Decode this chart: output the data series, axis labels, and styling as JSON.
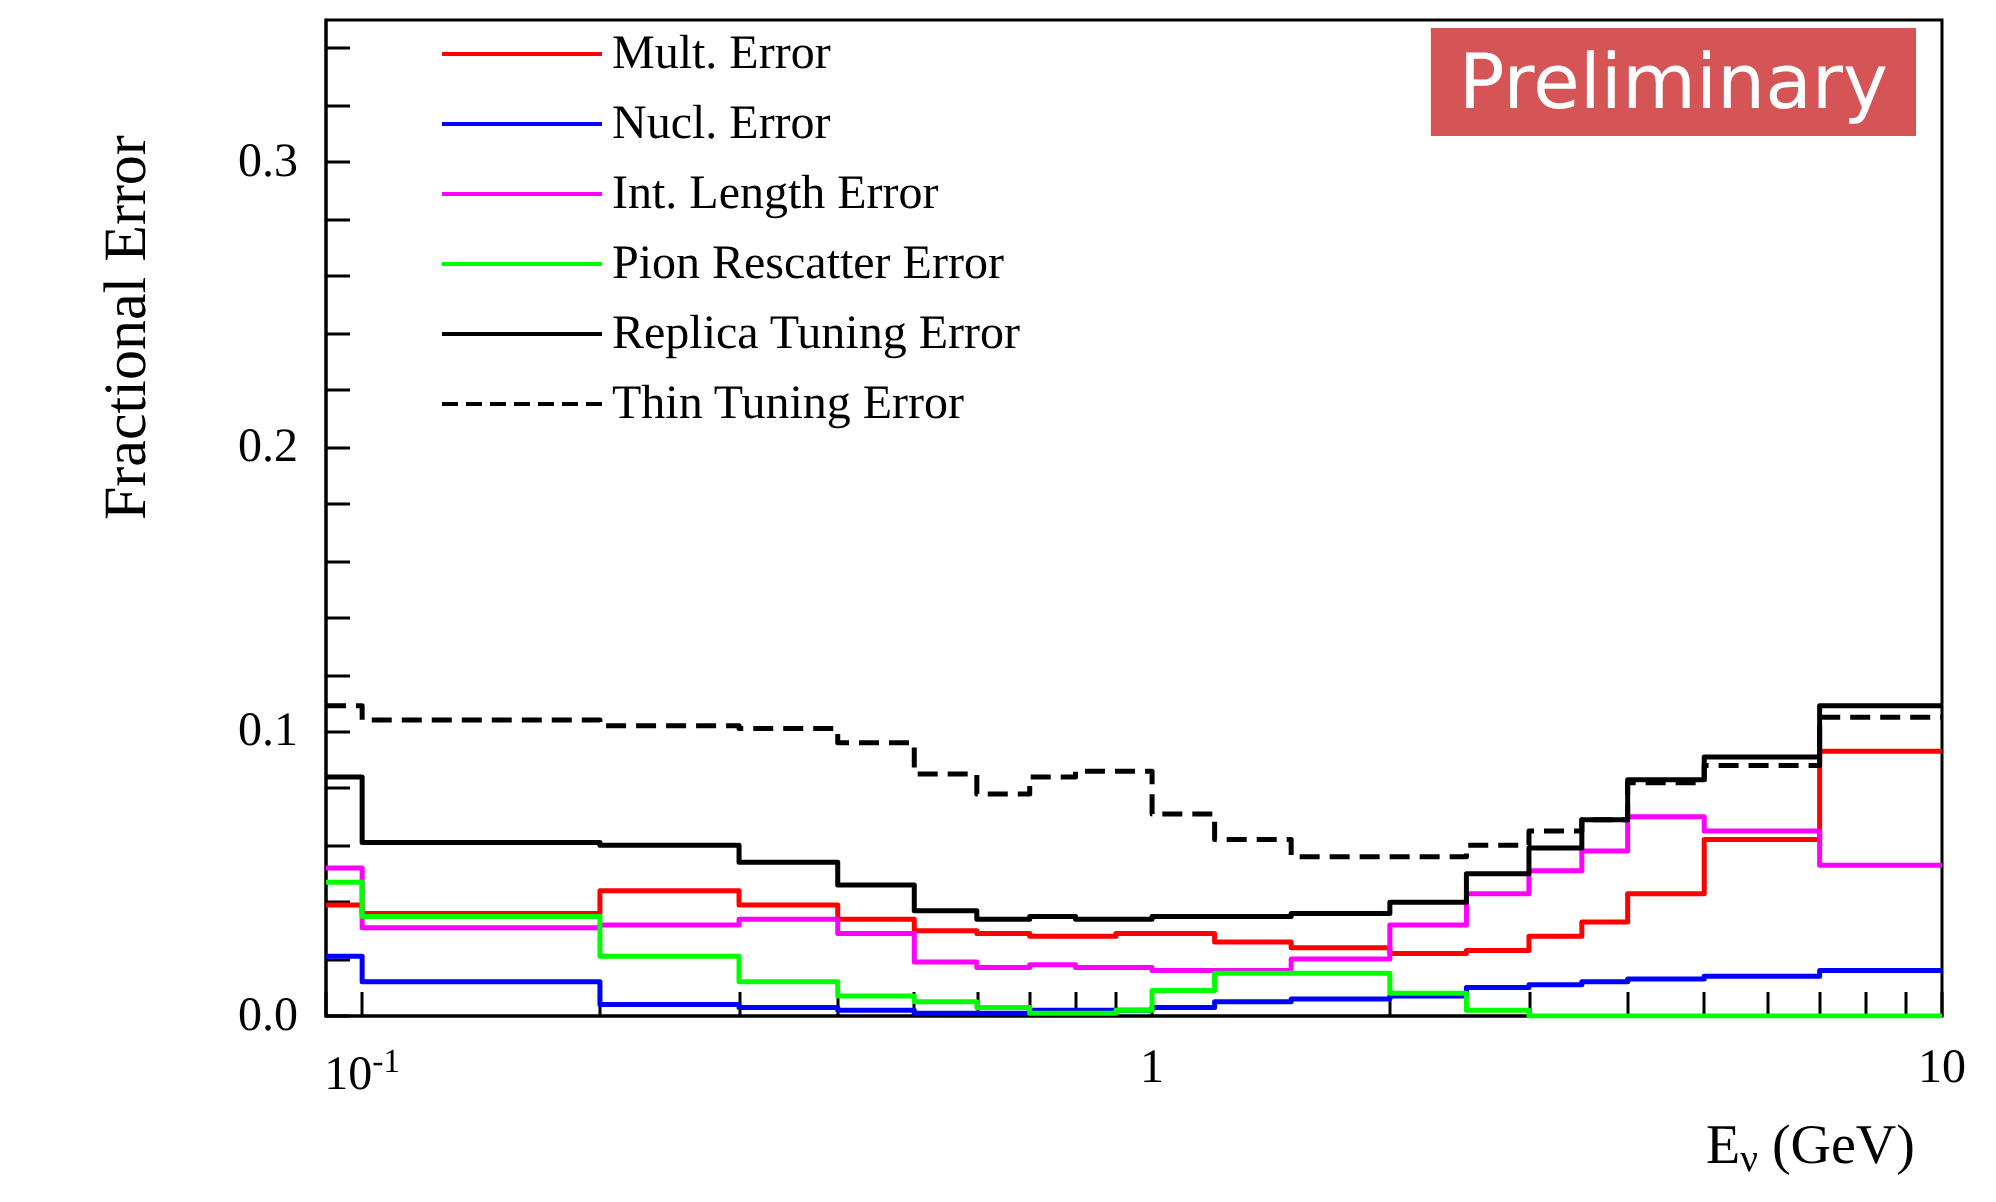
{
  "chart_data": {
    "type": "histogram",
    "xlabel": "E$_{ν}$ (GeV)",
    "ylabel": "Fractional Error",
    "annotations": [
      "Preliminary"
    ],
    "log": "x",
    "legend": "top left",
    "grid": false,
    "xlim": [
      0.09,
      10
    ],
    "ylim": [
      0,
      0.35
    ],
    "xticks": [
      {
        "value": 0.09,
        "label": null
      },
      {
        "value": 0.1,
        "label": "10$^{-1}$"
      },
      {
        "value": 0.2,
        "label": null
      },
      {
        "value": 0.3,
        "label": null
      },
      {
        "value": 0.4,
        "label": null
      },
      {
        "value": 0.5,
        "label": null
      },
      {
        "value": 0.6,
        "label": null
      },
      {
        "value": 0.7,
        "label": null
      },
      {
        "value": 0.8,
        "label": null
      },
      {
        "value": 0.9,
        "label": null
      },
      1,
      {
        "value": 2,
        "label": null
      },
      {
        "value": 3,
        "label": null
      },
      {
        "value": 4,
        "label": null
      },
      {
        "value": 5,
        "label": null
      },
      {
        "value": 6,
        "label": null
      },
      {
        "value": 7,
        "label": null
      },
      {
        "value": 8,
        "label": null
      },
      {
        "value": 9,
        "label": null
      },
      10
    ],
    "yticks": [
      {
        "value": 0,
        "label": "0.0"
      },
      {
        "value": 0.02,
        "label": null
      },
      {
        "value": 0.04,
        "label": null
      },
      {
        "value": 0.06,
        "label": null
      },
      {
        "value": 0.08,
        "label": null
      },
      0.1,
      {
        "value": 0.12,
        "label": null
      },
      {
        "value": 0.14,
        "label": null
      },
      {
        "value": 0.16,
        "label": null
      },
      {
        "value": 0.18,
        "label": null
      },
      0.2,
      {
        "value": 0.22,
        "label": null
      },
      {
        "value": 0.24,
        "label": null
      },
      {
        "value": 0.26,
        "label": null
      },
      {
        "value": 0.28,
        "label": null
      },
      0.3,
      {
        "value": 0.32,
        "label": null
      },
      {
        "value": 0.34,
        "label": null
      }
    ],
    "bins": [
      0.09,
      0.1,
      0.2,
      0.3,
      0.4,
      0.5,
      0.6,
      0.7,
      0.8,
      0.9,
      1,
      1.2,
      1.5,
      2,
      2.5,
      3,
      3.5,
      4,
      5,
      7,
      10
    ],
    "series": [
      {
        "name": "Mult. Error",
        "color": "#ff0000",
        "values": [
          0.039,
          0.036,
          0.044,
          0.039,
          0.034,
          0.03,
          0.029,
          0.028,
          0.028,
          0.029,
          0.029,
          0.026,
          0.024,
          0.022,
          0.023,
          0.028,
          0.033,
          0.043,
          0.062,
          0.093
        ]
      },
      {
        "name": "Nucl. Error",
        "color": "#0000ff",
        "values": [
          0.021,
          0.012,
          0.004,
          0.003,
          0.002,
          0.001,
          0.001,
          0.002,
          0.002,
          0.002,
          0.003,
          0.005,
          0.006,
          0.007,
          0.01,
          0.011,
          0.012,
          0.013,
          0.014,
          0.016
        ]
      },
      {
        "name": "Int. Length Error",
        "color": "#ff00ff",
        "values": [
          0.052,
          0.031,
          0.032,
          0.034,
          0.029,
          0.019,
          0.017,
          0.018,
          0.017,
          0.017,
          0.016,
          0.016,
          0.02,
          0.032,
          0.043,
          0.051,
          0.058,
          0.07,
          0.065,
          0.053
        ]
      },
      {
        "name": "Pion Rescatter Error",
        "color": "#00ff00",
        "values": [
          0.047,
          0.035,
          0.021,
          0.012,
          0.007,
          0.005,
          0.003,
          0.001,
          0.001,
          0.002,
          0.009,
          0.015,
          0.015,
          0.008,
          0.002,
          0,
          0,
          0,
          0,
          0
        ]
      },
      {
        "name": "Replica Tuning Error",
        "color": "#000000",
        "values": [
          0.084,
          0.061,
          0.06,
          0.054,
          0.046,
          0.037,
          0.034,
          0.035,
          0.034,
          0.034,
          0.035,
          0.035,
          0.036,
          0.04,
          0.05,
          0.059,
          0.069,
          0.083,
          0.091,
          0.109
        ]
      },
      {
        "name": "Thin Tuning Error",
        "color": "#000000",
        "line_style": "dashed",
        "values": [
          0.109,
          0.104,
          0.102,
          0.101,
          0.096,
          0.085,
          0.078,
          0.084,
          0.086,
          0.086,
          0.071,
          0.062,
          0.056,
          0.056,
          0.06,
          0.065,
          0.069,
          0.082,
          0.088,
          0.105
        ]
      }
    ]
  }
}
